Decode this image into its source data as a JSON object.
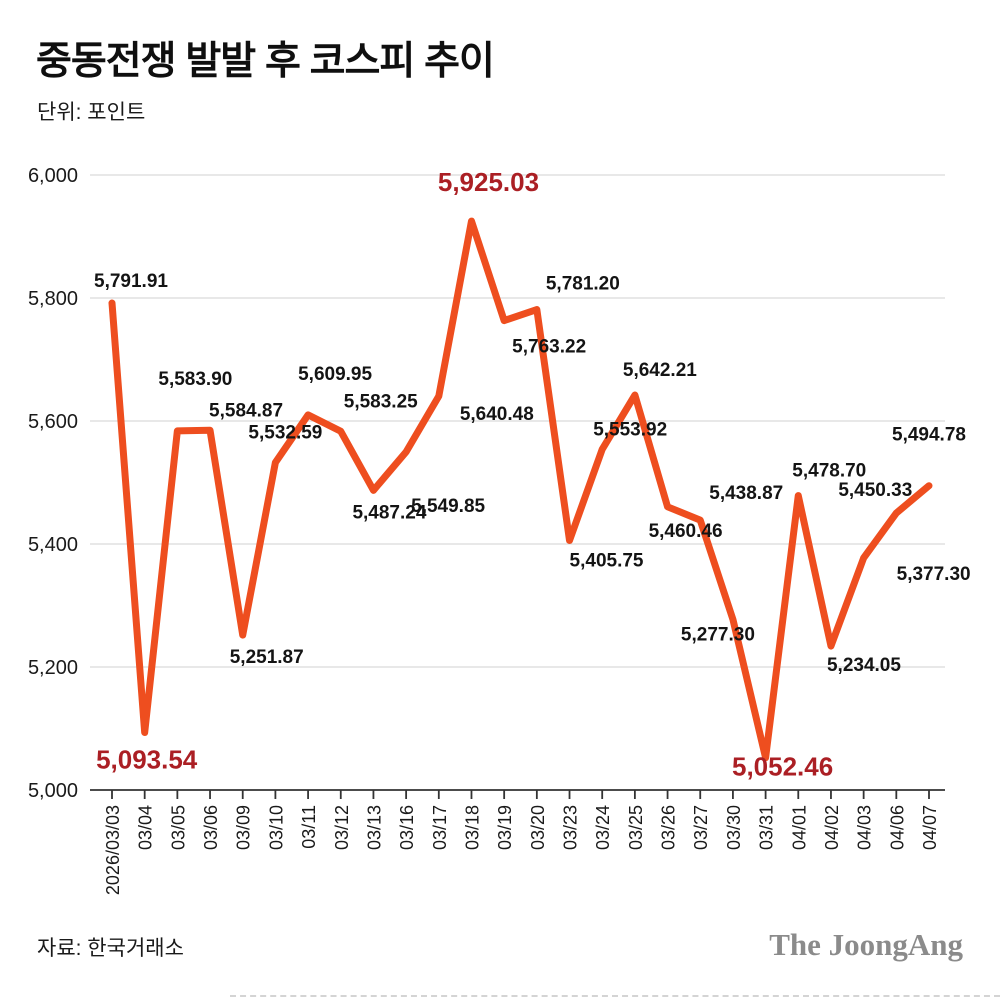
{
  "header": {
    "title": "중동전쟁 발발 후 코스피 추이",
    "unit_label": "단위: 포인트"
  },
  "footer": {
    "source": "자료: 한국거래소",
    "logo": "The JoongAng"
  },
  "colors": {
    "line": "#ee4e1f",
    "highlight_label": "#ab1f24",
    "grid": "#d9d9d9",
    "axis": "#333333",
    "text": "#1a1a1a"
  },
  "chart_data": {
    "type": "line",
    "title": "중동전쟁 발발 후 코스피 추이",
    "unit": "포인트",
    "xlabel": "",
    "ylabel": "",
    "ylim": [
      5000,
      6000
    ],
    "grid": true,
    "legend": "none",
    "x": [
      "2026/03/03",
      "03/04",
      "03/05",
      "03/06",
      "03/09",
      "03/10",
      "03/11",
      "03/12",
      "03/13",
      "03/16",
      "03/17",
      "03/18",
      "03/19",
      "03/20",
      "03/23",
      "03/24",
      "03/25",
      "03/26",
      "03/27",
      "03/30",
      "03/31",
      "04/01",
      "04/02",
      "04/03",
      "04/06",
      "04/07"
    ],
    "values": [
      5791.91,
      5093.54,
      5583.9,
      5584.87,
      5251.87,
      5532.59,
      5609.95,
      5583.25,
      5487.24,
      5549.85,
      5640.48,
      5925.03,
      5763.22,
      5781.2,
      5405.75,
      5553.92,
      5642.21,
      5460.46,
      5438.87,
      5277.3,
      5052.46,
      5478.7,
      5234.05,
      5377.3,
      5450.33,
      5494.78
    ],
    "point_labels": [
      "5,791.91",
      "5,093.54",
      "5,583.90",
      "5,584.87",
      "5,251.87",
      "5,532.59",
      "5,609.95",
      "5,583.25",
      "5,487.24",
      "5,549.85",
      "5,640.48",
      "5,925.03",
      "5,763.22",
      "5,781.20",
      "5,405.75",
      "5,553.92",
      "5,642.21",
      "5,460.46",
      "5,438.87",
      "5,277.30",
      "5,052.46",
      "5,478.70",
      "5,234.05",
      "5,377.30",
      "5,450.33",
      "5,494.78"
    ],
    "highlight_indices": [
      1,
      11,
      20
    ],
    "ytick_values": [
      5000,
      5200,
      5400,
      5600,
      5800,
      6000
    ],
    "ytick_labels": [
      "5,000",
      "5,200",
      "5,400",
      "5,600",
      "5,800",
      "6,000"
    ]
  }
}
